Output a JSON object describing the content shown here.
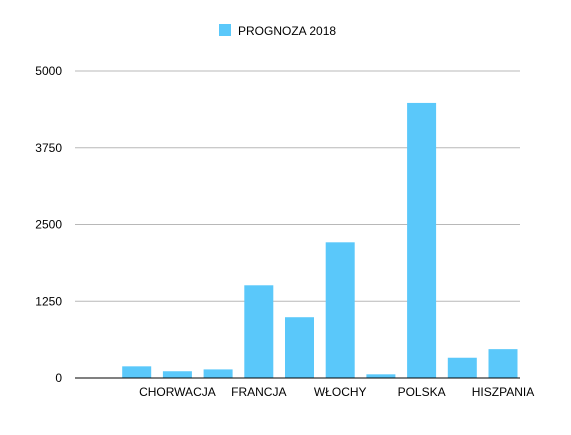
{
  "chart_data": {
    "type": "bar",
    "categories": [
      "",
      "",
      "CHORWACJA",
      "",
      "FRANCJA",
      "",
      "WŁOCHY",
      "",
      "POLSKA",
      "",
      "HISZPANIA"
    ],
    "series": [
      {
        "name": "PROGNOZA 2018",
        "values": [
          0,
          190,
          110,
          140,
          1510,
          990,
          2210,
          60,
          4480,
          330,
          470
        ],
        "color": "#5AC8FA"
      }
    ],
    "ylim": [
      0,
      5000
    ],
    "yticks": [
      0,
      1250,
      2500,
      3750,
      5000
    ],
    "ytick_labels": [
      "0",
      "1250",
      "2500",
      "3750",
      "5000"
    ],
    "grid": true,
    "legend_position": "top-center",
    "title": "",
    "xlabel": "",
    "ylabel": ""
  }
}
